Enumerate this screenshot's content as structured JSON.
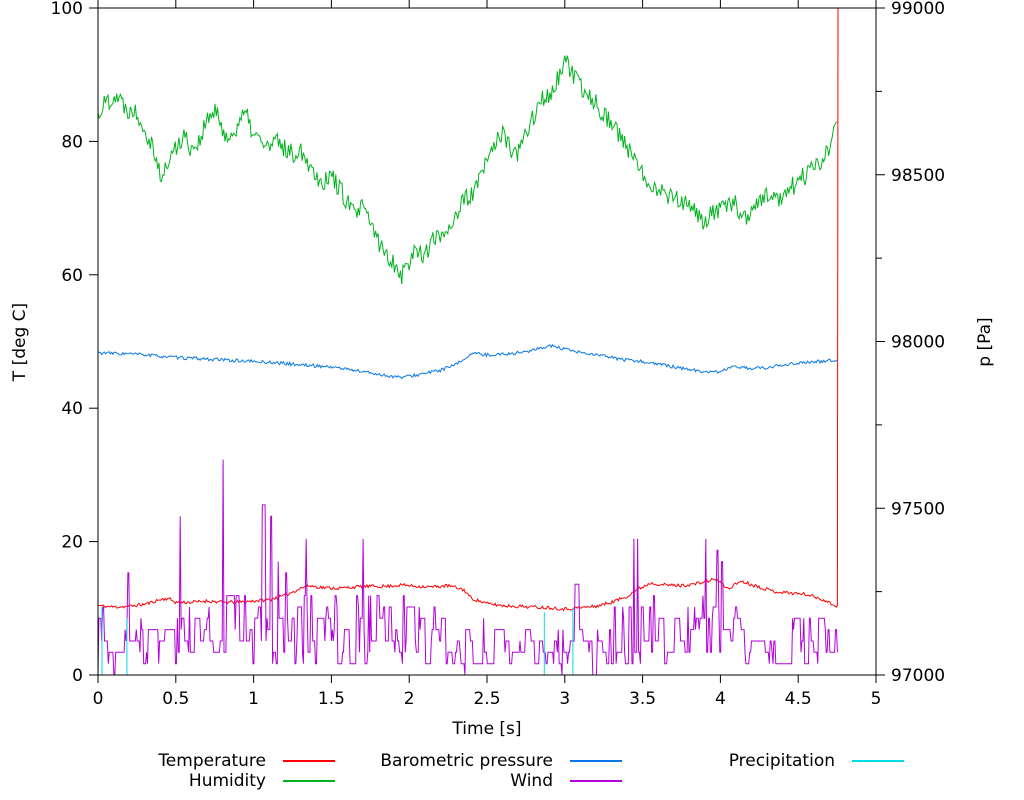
{
  "chart_data": {
    "type": "line",
    "title": "",
    "xlabel": "Time [s]",
    "ylabel": "T [deg C]",
    "y2label": "p [Pa]",
    "xlim": [
      0,
      5
    ],
    "ylim": [
      0,
      100
    ],
    "y2lim": [
      97000,
      99000
    ],
    "grid": false,
    "legend_position": "bottom-center",
    "data_end_time": 4.756,
    "x_ticks": {
      "values": [
        0,
        0.5,
        1,
        1.5,
        2,
        2.5,
        3,
        3.5,
        4,
        4.5,
        5
      ],
      "labels": [
        "0",
        "0.5",
        "1",
        "1.5",
        "2",
        "2.5",
        "3",
        "3.5",
        "4",
        "4.5",
        "5"
      ]
    },
    "y_ticks": {
      "values": [
        0,
        20,
        40,
        60,
        80,
        100
      ],
      "labels": [
        "0",
        "20",
        "40",
        "60",
        "80",
        "100"
      ]
    },
    "y2_ticks": {
      "values": [
        97000,
        97500,
        98000,
        98500,
        99000
      ],
      "labels": [
        "97000",
        "97500",
        "98000",
        "98500",
        "99000"
      ]
    },
    "y2_minor_ticks": [
      97250,
      97750,
      98250,
      98750
    ],
    "series": [
      {
        "name": "Temperature",
        "color": "#ff0000",
        "axis": "left",
        "mode": "noisy",
        "noise": 0.25,
        "seed": 11,
        "end_spike_to": 100,
        "keypoints": [
          [
            0,
            10.4
          ],
          [
            0.1,
            10.2
          ],
          [
            0.2,
            10.3
          ],
          [
            0.3,
            10.6
          ],
          [
            0.4,
            11.3
          ],
          [
            0.45,
            11.5
          ],
          [
            0.5,
            10.9
          ],
          [
            0.6,
            10.9
          ],
          [
            0.7,
            11.1
          ],
          [
            0.8,
            10.9
          ],
          [
            0.9,
            10.9
          ],
          [
            1.0,
            11.1
          ],
          [
            1.1,
            11.3
          ],
          [
            1.2,
            11.9
          ],
          [
            1.3,
            13.0
          ],
          [
            1.35,
            13.4
          ],
          [
            1.45,
            13.1
          ],
          [
            1.55,
            13.0
          ],
          [
            1.65,
            13.2
          ],
          [
            1.75,
            13.3
          ],
          [
            1.85,
            13.3
          ],
          [
            1.95,
            13.5
          ],
          [
            2.05,
            13.3
          ],
          [
            2.15,
            13.2
          ],
          [
            2.25,
            13.4
          ],
          [
            2.35,
            12.8
          ],
          [
            2.4,
            11.5
          ],
          [
            2.5,
            10.7
          ],
          [
            2.6,
            10.4
          ],
          [
            2.7,
            10.3
          ],
          [
            2.8,
            10.2
          ],
          [
            2.9,
            10.1
          ],
          [
            3.0,
            9.9
          ],
          [
            3.1,
            10.1
          ],
          [
            3.2,
            10.3
          ],
          [
            3.3,
            10.9
          ],
          [
            3.4,
            11.8
          ],
          [
            3.45,
            12.6
          ],
          [
            3.55,
            13.8
          ],
          [
            3.65,
            13.5
          ],
          [
            3.75,
            13.4
          ],
          [
            3.85,
            13.7
          ],
          [
            3.97,
            14.4
          ],
          [
            4.05,
            12.9
          ],
          [
            4.13,
            14.1
          ],
          [
            4.25,
            13.2
          ],
          [
            4.35,
            12.5
          ],
          [
            4.45,
            12.3
          ],
          [
            4.55,
            12.1
          ],
          [
            4.65,
            11.4
          ],
          [
            4.72,
            10.6
          ],
          [
            4.756,
            10.2
          ]
        ]
      },
      {
        "name": "Humidity",
        "color": "#00b41e",
        "axis": "left",
        "mode": "noisy",
        "noise": 1.5,
        "seed": 22,
        "keypoints": [
          [
            0,
            84
          ],
          [
            0.05,
            86
          ],
          [
            0.12,
            87
          ],
          [
            0.18,
            85
          ],
          [
            0.25,
            84.5
          ],
          [
            0.3,
            82
          ],
          [
            0.36,
            79
          ],
          [
            0.41,
            74
          ],
          [
            0.45,
            77
          ],
          [
            0.5,
            79
          ],
          [
            0.55,
            81
          ],
          [
            0.6,
            79
          ],
          [
            0.65,
            80
          ],
          [
            0.7,
            83
          ],
          [
            0.75,
            84.5
          ],
          [
            0.8,
            82
          ],
          [
            0.85,
            80
          ],
          [
            0.9,
            83
          ],
          [
            0.95,
            84
          ],
          [
            1.0,
            81
          ],
          [
            1.05,
            80
          ],
          [
            1.1,
            79
          ],
          [
            1.15,
            80
          ],
          [
            1.2,
            79
          ],
          [
            1.25,
            78
          ],
          [
            1.3,
            79
          ],
          [
            1.35,
            77
          ],
          [
            1.4,
            75
          ],
          [
            1.45,
            74
          ],
          [
            1.5,
            75
          ],
          [
            1.55,
            73
          ],
          [
            1.6,
            71
          ],
          [
            1.65,
            69
          ],
          [
            1.7,
            70
          ],
          [
            1.75,
            68
          ],
          [
            1.8,
            65
          ],
          [
            1.85,
            63
          ],
          [
            1.9,
            62
          ],
          [
            1.95,
            60
          ],
          [
            2.0,
            62
          ],
          [
            2.05,
            64
          ],
          [
            2.1,
            63
          ],
          [
            2.15,
            65
          ],
          [
            2.2,
            66
          ],
          [
            2.25,
            67
          ],
          [
            2.3,
            69
          ],
          [
            2.35,
            71
          ],
          [
            2.4,
            72
          ],
          [
            2.45,
            74
          ],
          [
            2.5,
            77
          ],
          [
            2.55,
            80
          ],
          [
            2.6,
            81
          ],
          [
            2.65,
            79
          ],
          [
            2.7,
            78
          ],
          [
            2.75,
            81
          ],
          [
            2.8,
            84
          ],
          [
            2.85,
            86
          ],
          [
            2.9,
            87
          ],
          [
            2.95,
            89
          ],
          [
            3.0,
            92
          ],
          [
            3.05,
            90
          ],
          [
            3.1,
            88
          ],
          [
            3.15,
            87
          ],
          [
            3.2,
            86
          ],
          [
            3.25,
            84
          ],
          [
            3.3,
            83
          ],
          [
            3.35,
            81
          ],
          [
            3.4,
            79
          ],
          [
            3.45,
            77
          ],
          [
            3.5,
            75
          ],
          [
            3.55,
            74
          ],
          [
            3.6,
            73
          ],
          [
            3.65,
            72
          ],
          [
            3.7,
            72
          ],
          [
            3.75,
            71
          ],
          [
            3.8,
            70
          ],
          [
            3.85,
            69
          ],
          [
            3.9,
            68
          ],
          [
            3.95,
            69
          ],
          [
            4.0,
            70
          ],
          [
            4.05,
            70
          ],
          [
            4.1,
            71
          ],
          [
            4.15,
            68
          ],
          [
            4.2,
            70
          ],
          [
            4.25,
            71
          ],
          [
            4.3,
            72
          ],
          [
            4.35,
            71
          ],
          [
            4.4,
            72
          ],
          [
            4.45,
            73
          ],
          [
            4.5,
            74
          ],
          [
            4.55,
            75
          ],
          [
            4.6,
            76
          ],
          [
            4.65,
            77
          ],
          [
            4.7,
            79
          ],
          [
            4.756,
            84
          ]
        ]
      },
      {
        "name": "Barometric pressure",
        "color": "#0a78e6",
        "axis": "right",
        "mode": "noisy",
        "noise": 5,
        "seed": 33,
        "keypoints": [
          [
            0,
            97966
          ],
          [
            0.25,
            97962
          ],
          [
            0.5,
            97952
          ],
          [
            0.75,
            97946
          ],
          [
            1.0,
            97940
          ],
          [
            1.15,
            97936
          ],
          [
            1.3,
            97930
          ],
          [
            1.5,
            97924
          ],
          [
            1.7,
            97910
          ],
          [
            1.85,
            97898
          ],
          [
            1.95,
            97892
          ],
          [
            2.05,
            97900
          ],
          [
            2.1,
            97904
          ],
          [
            2.2,
            97914
          ],
          [
            2.3,
            97930
          ],
          [
            2.4,
            97964
          ],
          [
            2.5,
            97960
          ],
          [
            2.6,
            97962
          ],
          [
            2.7,
            97966
          ],
          [
            2.8,
            97974
          ],
          [
            2.9,
            97988
          ],
          [
            3.0,
            97976
          ],
          [
            3.1,
            97966
          ],
          [
            3.2,
            97960
          ],
          [
            3.3,
            97952
          ],
          [
            3.4,
            97944
          ],
          [
            3.5,
            97940
          ],
          [
            3.6,
            97932
          ],
          [
            3.7,
            97924
          ],
          [
            3.8,
            97916
          ],
          [
            3.95,
            97906
          ],
          [
            4.1,
            97924
          ],
          [
            4.2,
            97920
          ],
          [
            4.3,
            97920
          ],
          [
            4.4,
            97930
          ],
          [
            4.5,
            97936
          ],
          [
            4.65,
            97940
          ],
          [
            4.756,
            97946
          ]
        ]
      },
      {
        "name": "Wind",
        "color": "#b400dc",
        "axis": "left",
        "mode": "wind",
        "seed": 44,
        "quantum": 1.7,
        "max": 34,
        "keypoints": [
          [
            0,
            4
          ],
          [
            0.3,
            5
          ],
          [
            0.5,
            6
          ],
          [
            0.7,
            7
          ],
          [
            0.9,
            8
          ],
          [
            1.1,
            6
          ],
          [
            1.3,
            7
          ],
          [
            1.5,
            7
          ],
          [
            1.8,
            7
          ],
          [
            2.1,
            7
          ],
          [
            2.35,
            5
          ],
          [
            2.5,
            4
          ],
          [
            2.7,
            4
          ],
          [
            2.9,
            4
          ],
          [
            3.1,
            4
          ],
          [
            3.3,
            5
          ],
          [
            3.5,
            7
          ],
          [
            3.7,
            6
          ],
          [
            3.9,
            7
          ],
          [
            4.1,
            6
          ],
          [
            4.3,
            6
          ],
          [
            4.5,
            6
          ],
          [
            4.756,
            5
          ]
        ],
        "spike_keypoints": [
          [
            0,
            8
          ],
          [
            0.5,
            22
          ],
          [
            0.9,
            31
          ],
          [
            1.2,
            17
          ],
          [
            1.5,
            21
          ],
          [
            1.9,
            27
          ],
          [
            2.2,
            25
          ],
          [
            2.5,
            14
          ],
          [
            2.8,
            12
          ],
          [
            3.1,
            10
          ],
          [
            3.4,
            19
          ],
          [
            3.6,
            16
          ],
          [
            3.9,
            18
          ],
          [
            4.2,
            15
          ],
          [
            4.5,
            13
          ],
          [
            4.756,
            10
          ]
        ]
      },
      {
        "name": "Precipitation",
        "color": "#00dce6",
        "axis": "left",
        "mode": "spikes",
        "spikes": [
          [
            0.026,
            10.2
          ],
          [
            0.186,
            8.6
          ],
          [
            2.868,
            9.4
          ],
          [
            3.052,
            10.0
          ]
        ]
      }
    ]
  },
  "legend": {
    "columns": [
      [
        0,
        1
      ],
      [
        2,
        3
      ],
      [
        4
      ]
    ]
  }
}
